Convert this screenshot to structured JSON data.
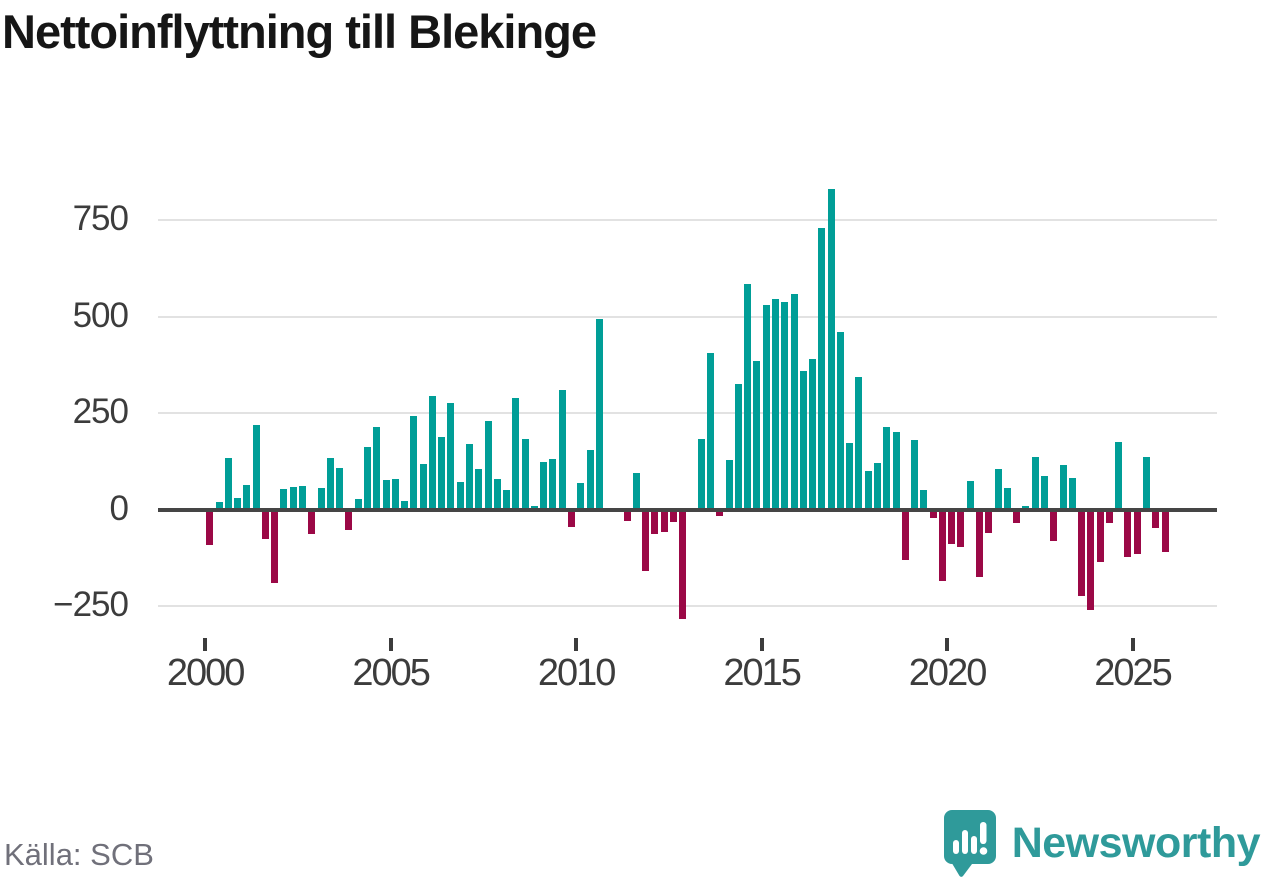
{
  "title": "Nettoinflyttning till Blekinge",
  "source": "Källa: SCB",
  "branding": {
    "logo_text": "Newsworthy",
    "logo_icon": "speech-bubble-bar-chart-exclamation"
  },
  "colors": {
    "positive_bar": "#009e97",
    "negative_bar": "#9b0846",
    "gridline": "#e2e2e2",
    "zero_line": "#454545",
    "title_text": "#161616",
    "axis_label": "#3c3c3c",
    "source_text": "#70707a",
    "brand_teal": "#2f9a9a"
  },
  "chart_data": {
    "type": "bar",
    "title": "Nettoinflyttning till Blekinge",
    "xlabel": "",
    "ylabel": "",
    "x_start": "2000-Q1",
    "x_end": "2025-Q4",
    "frequency": "quarterly",
    "x_tick_labels": [
      "2000",
      "2005",
      "2010",
      "2015",
      "2020",
      "2025"
    ],
    "y_ticks": [
      750,
      500,
      250,
      0,
      -250
    ],
    "y_tick_labels": [
      "750",
      "500",
      "250",
      "0",
      "−250"
    ],
    "ylim": [
      -305,
      855
    ],
    "grid": "horizontal",
    "legend": "none",
    "values": [
      -92,
      20,
      133,
      29,
      63,
      220,
      -77,
      -190,
      52,
      58,
      62,
      -63,
      56,
      134,
      107,
      -53,
      28,
      163,
      213,
      77,
      78,
      21,
      242,
      118,
      295,
      188,
      275,
      71,
      169,
      104,
      229,
      78,
      51,
      290,
      183,
      10,
      122,
      130,
      310,
      -45,
      70,
      155,
      495,
      0,
      0,
      -31,
      95,
      -160,
      -64,
      -58,
      -33,
      -285,
      0,
      184,
      405,
      -18,
      128,
      325,
      585,
      385,
      530,
      545,
      537,
      560,
      358,
      390,
      730,
      830,
      460,
      173,
      343,
      100,
      120,
      213,
      200,
      -130,
      180,
      50,
      -21,
      -185,
      -90,
      -98,
      75,
      -175,
      -62,
      105,
      55,
      -34,
      10,
      137,
      86,
      -82,
      115,
      81,
      -225,
      -260,
      -135,
      -35,
      175,
      -122,
      -115,
      135,
      -48,
      -110
    ]
  }
}
